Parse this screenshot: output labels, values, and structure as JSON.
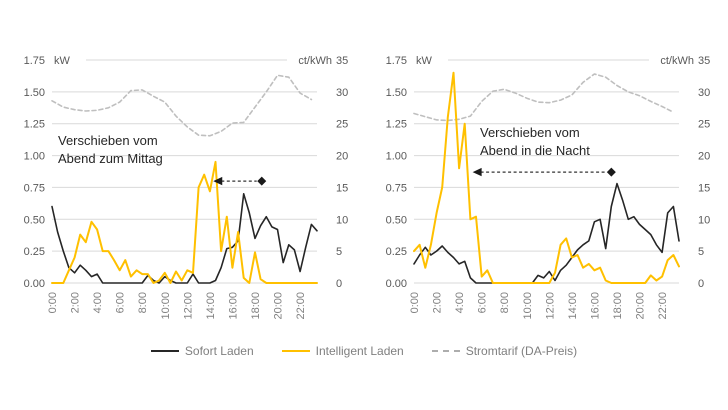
{
  "figure": {
    "background": "#ffffff"
  },
  "legend": {
    "items": [
      {
        "label": "Sofort Laden",
        "color": "#262626",
        "style": "solid"
      },
      {
        "label": "Intelligent Laden",
        "color": "#FFC000",
        "style": "solid"
      },
      {
        "label": "Stromtarif (DA-Preis)",
        "color": "#ADADAD",
        "style": "dashed"
      }
    ]
  },
  "axes": {
    "left_unit": "kW",
    "right_unit": "ct/kWh",
    "left_max": 1.75,
    "right_max": 35,
    "left_ticks": [
      "1.75",
      "1.50",
      "1.25",
      "1.00",
      "0.75",
      "0.50",
      "0.25",
      "0.00"
    ],
    "right_ticks": [
      "35",
      "30",
      "25",
      "20",
      "15",
      "10",
      "5",
      "0"
    ],
    "x_ticks": [
      "0:00",
      "2:00",
      "4:00",
      "6:00",
      "8:00",
      "10:00",
      "12:00",
      "14:00",
      "16:00",
      "18:00",
      "20:00",
      "22:00"
    ],
    "grid_color": "#D9D9D9",
    "axis_text_color": "#595959",
    "x_text_color": "#808080"
  },
  "chart_data": [
    {
      "type": "line",
      "annotation": "Verschieben vom\nAbend zum Mittag",
      "arrow": {
        "y_kw": 0.8,
        "tip_hour": 14.3,
        "tail_hour": 18.6
      },
      "x_range_hours": [
        0,
        23.5
      ],
      "series": [
        {
          "name": "Stromtarif (DA-Preis)",
          "axis": "right",
          "interval_hours": 1,
          "color": "#BFBFBF",
          "width": 1.6,
          "dash": "4 3",
          "values": [
            28.6,
            27.6,
            27.2,
            27.0,
            27.1,
            27.5,
            28.4,
            30.2,
            30.3,
            29.3,
            28.4,
            26.2,
            24.5,
            23.2,
            23.1,
            23.8,
            25.1,
            25.2,
            27.6,
            30.0,
            32.6,
            32.3,
            29.8,
            28.8
          ]
        },
        {
          "name": "Sofort Laden",
          "axis": "left",
          "interval_hours": 0.5,
          "color": "#262626",
          "width": 1.6,
          "dash": "",
          "values": [
            0.6,
            0.4,
            0.25,
            0.12,
            0.08,
            0.14,
            0.1,
            0.05,
            0.07,
            0.0,
            0.0,
            0.0,
            0.0,
            0.0,
            0.0,
            0.0,
            0.0,
            0.06,
            0.02,
            0.0,
            0.05,
            0.02,
            0.0,
            0.0,
            0.0,
            0.07,
            0.0,
            0.0,
            0.0,
            0.02,
            0.12,
            0.27,
            0.28,
            0.33,
            0.7,
            0.55,
            0.35,
            0.45,
            0.52,
            0.44,
            0.42,
            0.16,
            0.3,
            0.26,
            0.09,
            0.28,
            0.46,
            0.41
          ]
        },
        {
          "name": "Intelligent Laden",
          "axis": "left",
          "interval_hours": 0.5,
          "color": "#FFC000",
          "width": 2,
          "dash": "",
          "values": [
            0.0,
            0.0,
            0.0,
            0.1,
            0.2,
            0.38,
            0.32,
            0.48,
            0.42,
            0.25,
            0.25,
            0.18,
            0.1,
            0.18,
            0.05,
            0.1,
            0.07,
            0.07,
            0.0,
            0.02,
            0.08,
            0.0,
            0.09,
            0.02,
            0.1,
            0.08,
            0.75,
            0.85,
            0.72,
            0.95,
            0.25,
            0.52,
            0.12,
            0.4,
            0.04,
            0.0,
            0.24,
            0.03,
            0.0,
            0.0,
            0.0,
            0.0,
            0.0,
            0.0,
            0.0,
            0.0,
            0.0,
            0.0
          ]
        }
      ]
    },
    {
      "type": "line",
      "annotation": "Verschieben vom\nAbend in die Nacht",
      "arrow": {
        "y_kw": 0.87,
        "tip_hour": 5.2,
        "tail_hour": 17.5
      },
      "x_range_hours": [
        0,
        23.5
      ],
      "series": [
        {
          "name": "Stromtarif (DA-Preis)",
          "axis": "right",
          "interval_hours": 1,
          "color": "#BFBFBF",
          "width": 1.6,
          "dash": "4 3",
          "values": [
            26.6,
            26.1,
            25.6,
            25.5,
            25.7,
            26.2,
            28.5,
            30.1,
            30.4,
            29.8,
            29.0,
            28.4,
            28.3,
            28.7,
            29.5,
            31.5,
            32.8,
            32.3,
            31.0,
            30.0,
            29.4,
            28.5,
            27.7,
            26.8
          ]
        },
        {
          "name": "Sofort Laden",
          "axis": "left",
          "interval_hours": 0.5,
          "color": "#262626",
          "width": 1.6,
          "dash": "",
          "values": [
            0.15,
            0.22,
            0.28,
            0.22,
            0.25,
            0.29,
            0.24,
            0.2,
            0.15,
            0.17,
            0.04,
            0.0,
            0.0,
            0.0,
            0.0,
            0.0,
            0.0,
            0.0,
            0.0,
            0.0,
            0.0,
            0.0,
            0.06,
            0.04,
            0.09,
            0.02,
            0.1,
            0.14,
            0.2,
            0.26,
            0.3,
            0.33,
            0.48,
            0.5,
            0.27,
            0.6,
            0.78,
            0.65,
            0.5,
            0.52,
            0.46,
            0.42,
            0.38,
            0.3,
            0.24,
            0.55,
            0.6,
            0.33
          ]
        },
        {
          "name": "Intelligent Laden",
          "axis": "left",
          "interval_hours": 0.5,
          "color": "#FFC000",
          "width": 2,
          "dash": "",
          "values": [
            0.25,
            0.3,
            0.12,
            0.3,
            0.55,
            0.75,
            1.3,
            1.65,
            0.9,
            1.25,
            0.5,
            0.52,
            0.05,
            0.1,
            0.0,
            0.0,
            0.0,
            0.0,
            0.0,
            0.0,
            0.0,
            0.0,
            0.0,
            0.0,
            0.0,
            0.08,
            0.3,
            0.35,
            0.2,
            0.22,
            0.12,
            0.15,
            0.1,
            0.12,
            0.02,
            0.0,
            0.0,
            0.0,
            0.0,
            0.0,
            0.0,
            0.0,
            0.06,
            0.02,
            0.05,
            0.18,
            0.22,
            0.13
          ]
        }
      ]
    }
  ]
}
